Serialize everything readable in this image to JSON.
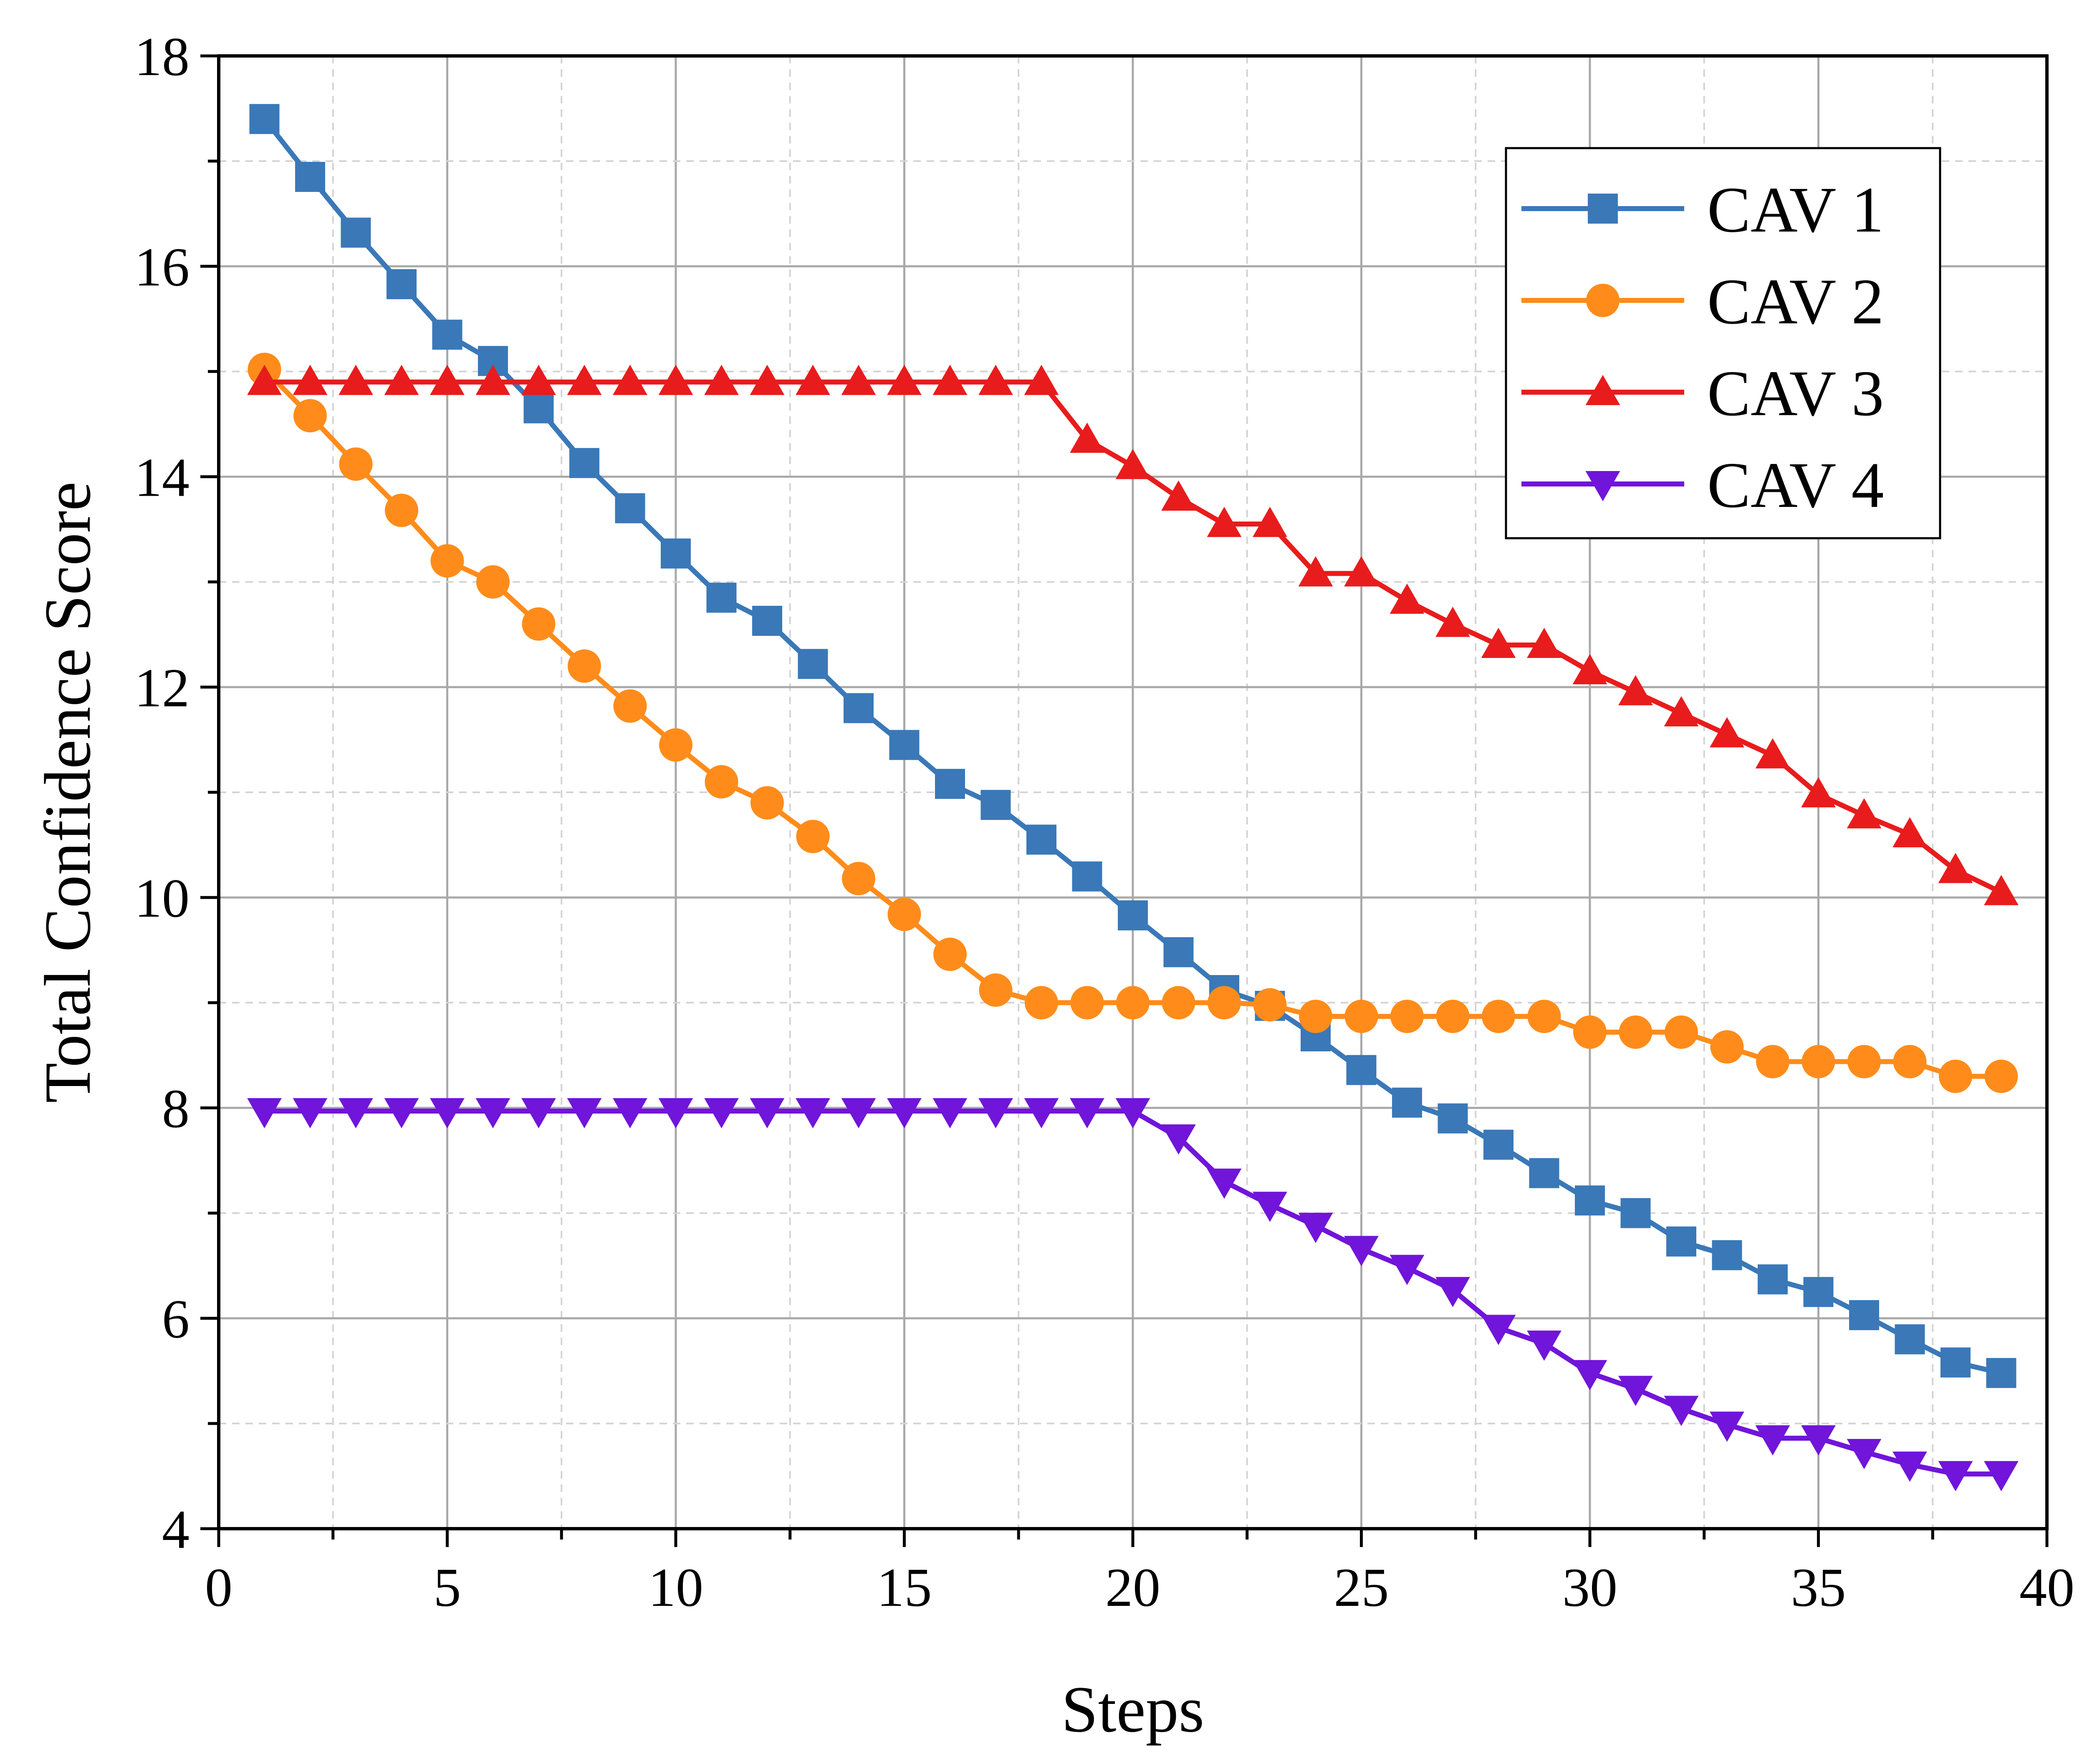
{
  "chart_data": {
    "type": "line",
    "title": "",
    "xlabel": "Steps",
    "ylabel": "Total Confidence Score",
    "xlim": [
      0,
      40
    ],
    "ylim": [
      4,
      18
    ],
    "xticks": [
      0,
      5,
      10,
      15,
      20,
      25,
      30,
      35,
      40
    ],
    "yticks": [
      4,
      6,
      8,
      10,
      12,
      14,
      16,
      18
    ],
    "grid": true,
    "legend_position": "top-right",
    "x": [
      1,
      2,
      3,
      4,
      5,
      6,
      7,
      8,
      9,
      10,
      11,
      12,
      13,
      14,
      15,
      16,
      17,
      18,
      19,
      20,
      21,
      22,
      23,
      24,
      25,
      26,
      27,
      28,
      29,
      30,
      31,
      32,
      33,
      34,
      35,
      36,
      37,
      38,
      39
    ],
    "series": [
      {
        "name": "CAV 1",
        "color": "#3a78b8",
        "marker": "square",
        "values": [
          17.4,
          16.85,
          16.32,
          15.83,
          15.35,
          15.1,
          14.65,
          14.13,
          13.7,
          13.27,
          12.85,
          12.63,
          12.22,
          11.8,
          11.45,
          11.08,
          10.88,
          10.55,
          10.2,
          9.83,
          9.48,
          9.12,
          8.97,
          8.68,
          8.36,
          8.05,
          7.9,
          7.65,
          7.38,
          7.12,
          7.0,
          6.73,
          6.6,
          6.37,
          6.25,
          6.03,
          5.8,
          5.58,
          5.48
        ]
      },
      {
        "name": "CAV 2",
        "color": "#ff8c1a",
        "marker": "circle",
        "values": [
          15.02,
          14.58,
          14.12,
          13.68,
          13.2,
          13.0,
          12.6,
          12.2,
          11.82,
          11.45,
          11.1,
          10.9,
          10.58,
          10.18,
          9.84,
          9.46,
          9.12,
          9.0,
          9.0,
          9.0,
          9.0,
          9.0,
          8.98,
          8.87,
          8.87,
          8.87,
          8.87,
          8.87,
          8.87,
          8.72,
          8.72,
          8.72,
          8.58,
          8.44,
          8.44,
          8.44,
          8.44,
          8.3,
          8.3
        ]
      },
      {
        "name": "CAV 3",
        "color": "#e81c1c",
        "marker": "triangle-up",
        "values": [
          14.9,
          14.9,
          14.9,
          14.9,
          14.9,
          14.9,
          14.9,
          14.9,
          14.9,
          14.9,
          14.9,
          14.9,
          14.9,
          14.9,
          14.9,
          14.9,
          14.9,
          14.9,
          14.35,
          14.1,
          13.8,
          13.55,
          13.55,
          13.08,
          13.08,
          12.82,
          12.6,
          12.4,
          12.4,
          12.15,
          11.95,
          11.75,
          11.55,
          11.35,
          10.98,
          10.78,
          10.6,
          10.26,
          10.05
        ]
      },
      {
        "name": "CAV 4",
        "color": "#7015d9",
        "marker": "triangle-down",
        "values": [
          7.97,
          7.97,
          7.97,
          7.97,
          7.97,
          7.97,
          7.97,
          7.97,
          7.97,
          7.97,
          7.97,
          7.97,
          7.97,
          7.97,
          7.97,
          7.97,
          7.97,
          7.97,
          7.97,
          7.97,
          7.72,
          7.3,
          7.08,
          6.88,
          6.66,
          6.48,
          6.27,
          5.91,
          5.76,
          5.48,
          5.33,
          5.14,
          4.99,
          4.86,
          4.86,
          4.73,
          4.61,
          4.52,
          4.52
        ]
      }
    ]
  }
}
